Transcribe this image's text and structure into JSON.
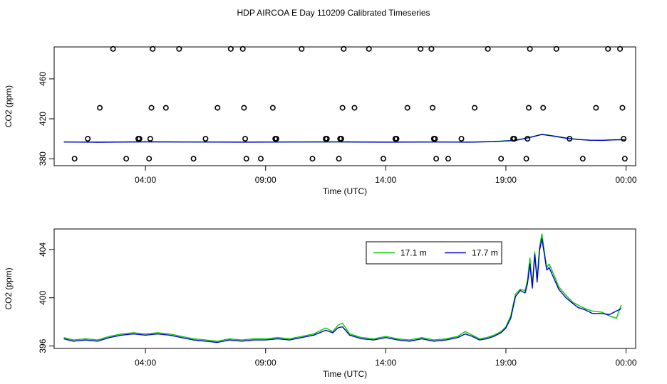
{
  "title": "HDP AIRCOA E  Day 110209  Calibrated Timeseries",
  "colors": {
    "green": "#00cc00",
    "blue": "#0000cc",
    "black": "#000000"
  },
  "chart_data": [
    {
      "type": "scatter",
      "xlabel": "Time (UTC)",
      "ylabel": "CO2 (ppm)",
      "xlim": [
        0.2,
        24.4
      ],
      "ylim": [
        373,
        492
      ],
      "x_ticks": [
        {
          "value": 4,
          "label": "04:00"
        },
        {
          "value": 9,
          "label": "09:00"
        },
        {
          "value": 14,
          "label": "14:00"
        },
        {
          "value": 19,
          "label": "19:00"
        },
        {
          "value": 24,
          "label": "00:00"
        }
      ],
      "y_ticks": [
        {
          "value": 380,
          "label": "380"
        },
        {
          "value": 420,
          "label": "420"
        },
        {
          "value": 460,
          "label": "460"
        }
      ],
      "grid": false,
      "legend": "none",
      "points": [
        {
          "x": 1.05,
          "y": 380
        },
        {
          "x": 1.6,
          "y": 400
        },
        {
          "x": 2.1,
          "y": 431
        },
        {
          "x": 2.65,
          "y": 490
        },
        {
          "x": 3.2,
          "y": 380
        },
        {
          "x": 3.7,
          "y": 400
        },
        {
          "x": 3.75,
          "y": 400
        },
        {
          "x": 4.15,
          "y": 380
        },
        {
          "x": 4.2,
          "y": 400
        },
        {
          "x": 4.25,
          "y": 431
        },
        {
          "x": 4.3,
          "y": 490
        },
        {
          "x": 4.85,
          "y": 431
        },
        {
          "x": 5.4,
          "y": 490
        },
        {
          "x": 6.0,
          "y": 380
        },
        {
          "x": 6.5,
          "y": 400
        },
        {
          "x": 7.0,
          "y": 431
        },
        {
          "x": 7.55,
          "y": 490
        },
        {
          "x": 8.05,
          "y": 490
        },
        {
          "x": 8.1,
          "y": 431
        },
        {
          "x": 8.15,
          "y": 400
        },
        {
          "x": 8.2,
          "y": 380
        },
        {
          "x": 8.8,
          "y": 380
        },
        {
          "x": 9.3,
          "y": 431
        },
        {
          "x": 9.4,
          "y": 400
        },
        {
          "x": 9.45,
          "y": 400
        },
        {
          "x": 10.5,
          "y": 490
        },
        {
          "x": 10.95,
          "y": 380
        },
        {
          "x": 11.5,
          "y": 400
        },
        {
          "x": 11.55,
          "y": 400
        },
        {
          "x": 12.05,
          "y": 380
        },
        {
          "x": 12.1,
          "y": 400
        },
        {
          "x": 12.15,
          "y": 400
        },
        {
          "x": 12.2,
          "y": 431
        },
        {
          "x": 12.25,
          "y": 490
        },
        {
          "x": 12.7,
          "y": 431
        },
        {
          "x": 13.3,
          "y": 490
        },
        {
          "x": 13.9,
          "y": 380
        },
        {
          "x": 14.4,
          "y": 400
        },
        {
          "x": 14.45,
          "y": 400
        },
        {
          "x": 14.9,
          "y": 431
        },
        {
          "x": 15.45,
          "y": 490
        },
        {
          "x": 15.9,
          "y": 490
        },
        {
          "x": 15.95,
          "y": 431
        },
        {
          "x": 16.0,
          "y": 400
        },
        {
          "x": 16.05,
          "y": 400
        },
        {
          "x": 16.1,
          "y": 380
        },
        {
          "x": 16.6,
          "y": 380
        },
        {
          "x": 17.15,
          "y": 400
        },
        {
          "x": 17.7,
          "y": 431
        },
        {
          "x": 18.25,
          "y": 490
        },
        {
          "x": 18.8,
          "y": 380
        },
        {
          "x": 19.3,
          "y": 400
        },
        {
          "x": 19.35,
          "y": 400
        },
        {
          "x": 19.85,
          "y": 380
        },
        {
          "x": 19.9,
          "y": 400
        },
        {
          "x": 19.95,
          "y": 431
        },
        {
          "x": 20.0,
          "y": 490
        },
        {
          "x": 20.55,
          "y": 431
        },
        {
          "x": 21.1,
          "y": 490
        },
        {
          "x": 21.65,
          "y": 400
        },
        {
          "x": 22.2,
          "y": 380
        },
        {
          "x": 22.75,
          "y": 431
        },
        {
          "x": 23.25,
          "y": 490
        },
        {
          "x": 23.75,
          "y": 490
        },
        {
          "x": 23.85,
          "y": 431
        },
        {
          "x": 23.9,
          "y": 400
        },
        {
          "x": 23.95,
          "y": 380
        }
      ],
      "series": [
        {
          "color": "#00cc00",
          "x": [
            0.6,
            2,
            4,
            6,
            8,
            10,
            12,
            14,
            16,
            17.5,
            18.5,
            19.4,
            20.0,
            20.5,
            21.0,
            21.5,
            22.0,
            22.5,
            23.0,
            23.5,
            24.0
          ],
          "y": [
            396.8,
            396.6,
            397.0,
            396.8,
            396.7,
            396.8,
            396.9,
            396.7,
            396.8,
            396.7,
            397.2,
            398.5,
            401.5,
            404.5,
            402.8,
            400.8,
            399.3,
            398.6,
            398.5,
            399.0,
            399.2
          ]
        },
        {
          "color": "#0000cc",
          "x": [
            0.6,
            2,
            4,
            6,
            8,
            10,
            12,
            14,
            16,
            17.5,
            18.5,
            19.4,
            20.0,
            20.5,
            21.0,
            21.5,
            22.0,
            22.5,
            23.0,
            23.5,
            24.0
          ],
          "y": [
            396.7,
            396.5,
            396.9,
            396.7,
            396.6,
            396.7,
            396.8,
            396.6,
            396.7,
            396.6,
            397.1,
            398.4,
            401.3,
            404.3,
            402.6,
            400.6,
            399.2,
            398.5,
            398.4,
            398.9,
            399.1
          ]
        }
      ]
    },
    {
      "type": "line",
      "xlabel": "Time (UTC)",
      "ylabel": "CO2 (ppm)",
      "xlim": [
        0.2,
        24.4
      ],
      "ylim": [
        395.8,
        405.7
      ],
      "x_ticks": [
        {
          "value": 4,
          "label": "04:00"
        },
        {
          "value": 9,
          "label": "09:00"
        },
        {
          "value": 14,
          "label": "14:00"
        },
        {
          "value": 19,
          "label": "19:00"
        },
        {
          "value": 24,
          "label": "00:00"
        }
      ],
      "y_ticks": [
        {
          "value": 396,
          "label": "396"
        },
        {
          "value": 400,
          "label": "400"
        },
        {
          "value": 404,
          "label": "404"
        }
      ],
      "grid": false,
      "legend": "top-right",
      "series": [
        {
          "name": "17.1 m",
          "color": "#00cc00",
          "x": [
            0.6,
            1.0,
            1.5,
            2.0,
            2.5,
            3.0,
            3.5,
            4.0,
            4.5,
            5.0,
            5.5,
            6.0,
            6.5,
            7.0,
            7.5,
            8.0,
            8.5,
            9.0,
            9.5,
            10.0,
            10.5,
            11.0,
            11.5,
            11.8,
            12.0,
            12.2,
            12.5,
            13.0,
            13.5,
            14.0,
            14.5,
            15.0,
            15.5,
            16.0,
            16.5,
            17.0,
            17.3,
            17.6,
            17.9,
            18.2,
            18.5,
            18.8,
            19.0,
            19.2,
            19.4,
            19.6,
            19.8,
            19.9,
            20.0,
            20.1,
            20.2,
            20.3,
            20.4,
            20.5,
            20.6,
            20.7,
            20.8,
            21.0,
            21.2,
            21.5,
            21.8,
            22.0,
            22.3,
            22.6,
            23.0,
            23.3,
            23.6,
            23.8
          ],
          "y": [
            396.7,
            396.5,
            396.6,
            396.5,
            396.8,
            397.0,
            397.1,
            397.0,
            397.1,
            397.0,
            396.8,
            396.6,
            396.5,
            396.4,
            396.6,
            396.5,
            396.6,
            396.6,
            396.7,
            396.6,
            396.8,
            397.0,
            397.5,
            397.2,
            397.7,
            397.9,
            397.0,
            396.7,
            396.6,
            396.8,
            396.6,
            396.5,
            396.7,
            396.5,
            396.6,
            396.8,
            397.2,
            396.9,
            396.6,
            396.7,
            396.9,
            397.2,
            397.6,
            398.5,
            400.3,
            400.7,
            400.6,
            401.5,
            403.3,
            401.0,
            403.8,
            401.6,
            404.2,
            405.3,
            403.8,
            402.5,
            402.8,
            401.9,
            400.9,
            400.2,
            399.6,
            399.4,
            399.1,
            398.9,
            398.8,
            398.5,
            398.3,
            399.4
          ]
        },
        {
          "name": "17.7 m",
          "color": "#0000cc",
          "x": [
            0.6,
            1.0,
            1.5,
            2.0,
            2.5,
            3.0,
            3.5,
            4.0,
            4.5,
            5.0,
            5.5,
            6.0,
            6.5,
            7.0,
            7.5,
            8.0,
            8.5,
            9.0,
            9.5,
            10.0,
            10.5,
            11.0,
            11.5,
            11.8,
            12.0,
            12.2,
            12.5,
            13.0,
            13.5,
            14.0,
            14.5,
            15.0,
            15.5,
            16.0,
            16.5,
            17.0,
            17.3,
            17.6,
            17.9,
            18.2,
            18.5,
            18.8,
            19.0,
            19.2,
            19.4,
            19.6,
            19.8,
            19.9,
            20.0,
            20.1,
            20.2,
            20.3,
            20.4,
            20.5,
            20.6,
            20.7,
            20.8,
            21.0,
            21.2,
            21.5,
            21.8,
            22.0,
            22.3,
            22.6,
            23.0,
            23.3,
            23.6,
            23.8
          ],
          "y": [
            396.6,
            396.4,
            396.5,
            396.4,
            396.7,
            396.9,
            397.0,
            396.9,
            397.0,
            396.9,
            396.7,
            396.5,
            396.4,
            396.3,
            396.5,
            396.4,
            396.5,
            396.5,
            396.6,
            396.5,
            396.7,
            396.9,
            397.3,
            397.1,
            397.5,
            397.6,
            396.9,
            396.6,
            396.5,
            396.7,
            396.5,
            396.4,
            396.6,
            396.4,
            396.5,
            396.7,
            397.0,
            396.8,
            396.5,
            396.6,
            396.8,
            397.1,
            397.5,
            398.3,
            400.1,
            400.6,
            400.4,
            401.2,
            402.8,
            400.8,
            403.6,
            401.3,
            403.9,
            404.9,
            403.6,
            402.3,
            402.5,
            401.6,
            400.7,
            400.0,
            399.5,
            399.2,
            399.0,
            398.7,
            398.7,
            398.6,
            398.9,
            399.1
          ]
        }
      ]
    }
  ]
}
